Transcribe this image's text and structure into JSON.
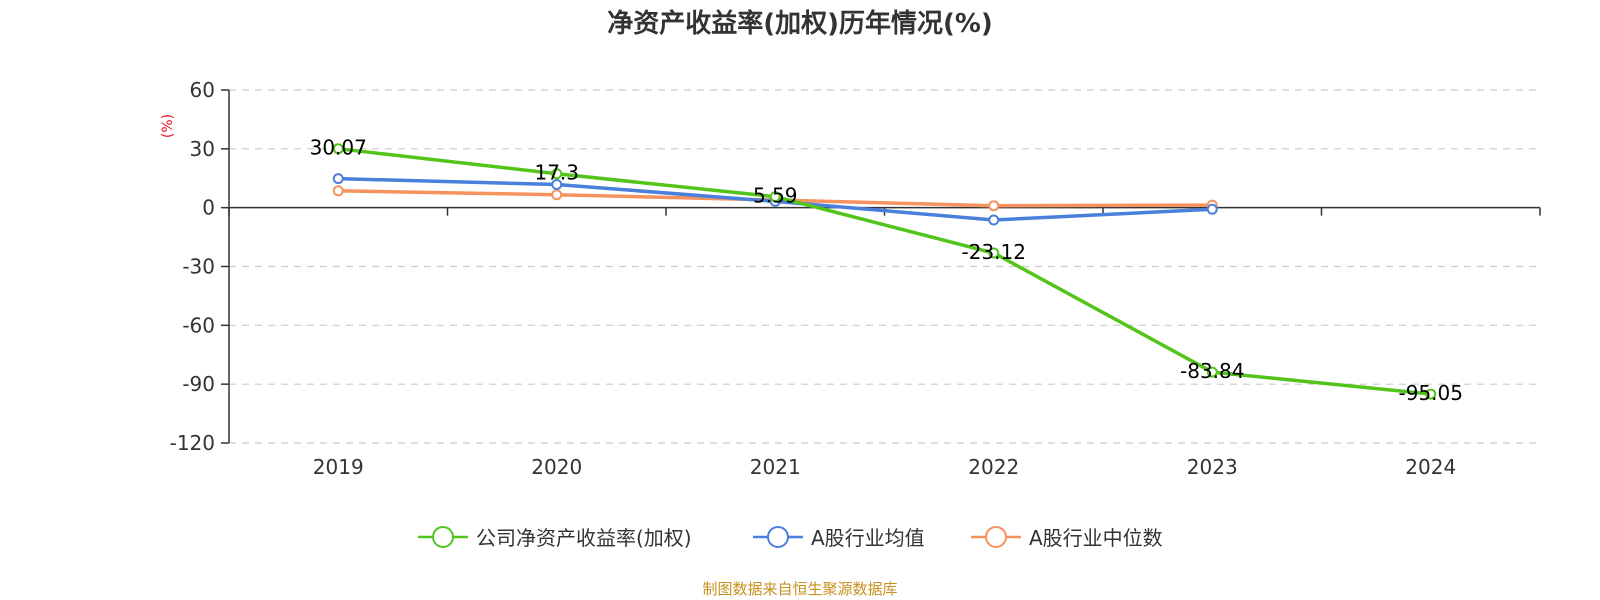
{
  "colors": {
    "company": "#52c41a",
    "industry_avg": "#4a7fdc",
    "industry_median": "#f5925e",
    "unit_label": "#e8141b",
    "source": "#c8901e",
    "axis": "#333333",
    "grid": "#cccccc"
  },
  "source_text": "制图数据来自恒生聚源数据库",
  "chart_data": {
    "type": "line",
    "title": "净资产收益率(加权)历年情况(%)",
    "ylabel": "(%)",
    "xlabel": "",
    "categories": [
      "2019",
      "2020",
      "2021",
      "2022",
      "2023",
      "2024"
    ],
    "ylim": [
      -120,
      60
    ],
    "yticks": [
      60,
      30,
      0,
      -30,
      -60,
      -90,
      -120
    ],
    "ytick_labels": [
      "60",
      "30",
      "0",
      "-30",
      "-60",
      "-90",
      "-120"
    ],
    "grid": true,
    "legend_position": "bottom",
    "series": [
      {
        "name": "公司净资产收益率(加权)",
        "color_key": "company",
        "values": [
          30.07,
          17.3,
          5.59,
          -23.12,
          -83.84,
          -95.05
        ],
        "labels": [
          "30.07",
          "17.3",
          "5.59",
          "-23.12",
          "-83.84",
          "-95.05"
        ]
      },
      {
        "name": "A股行业均值",
        "color_key": "industry_avg",
        "values": [
          14.8,
          11.8,
          3.2,
          -6.3,
          -0.8,
          null
        ]
      },
      {
        "name": "A股行业中位数",
        "color_key": "industry_median",
        "values": [
          8.6,
          6.6,
          3.9,
          1.0,
          1.3,
          null
        ]
      }
    ]
  }
}
